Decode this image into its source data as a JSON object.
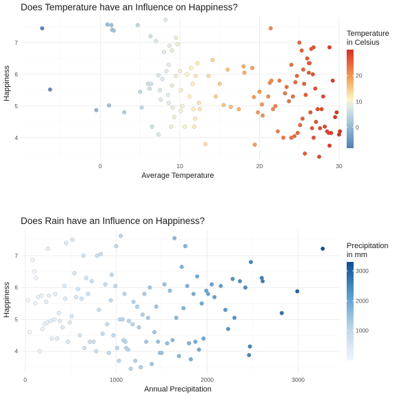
{
  "chart_data": [
    {
      "type": "scatter",
      "title": "Does Temperature have an Influence on Happiness?",
      "xlabel": "Average Temperature",
      "ylabel": "Happiness",
      "xlim": [
        -10,
        30
      ],
      "ylim": [
        3.3,
        7.8
      ],
      "xticks": [
        0,
        10,
        20,
        30
      ],
      "yticks": [
        4,
        5,
        6,
        7
      ],
      "grid": true,
      "legend": {
        "title_lines": [
          "Temperature",
          "in Celsius"
        ],
        "placement": "right",
        "range": [
          -8,
          30
        ],
        "ticks": [
          0,
          10,
          20
        ],
        "colors": [
          "#4f7fb5",
          "#fbf4c0",
          "#d7301f"
        ]
      },
      "points": [
        [
          -7.3,
          7.45
        ],
        [
          -6.3,
          5.52
        ],
        [
          -0.5,
          4.87
        ],
        [
          0.9,
          7.57
        ],
        [
          1.1,
          5.02
        ],
        [
          1.4,
          7.55
        ],
        [
          1.5,
          7.4
        ],
        [
          1.7,
          7.38
        ],
        [
          3.0,
          4.8
        ],
        [
          4.7,
          7.55
        ],
        [
          5.0,
          5.45
        ],
        [
          5.2,
          4.95
        ],
        [
          6.0,
          5.7
        ],
        [
          6.2,
          5.55
        ],
        [
          6.3,
          7.2
        ],
        [
          6.4,
          5.7
        ],
        [
          6.5,
          4.35
        ],
        [
          7.0,
          7.05
        ],
        [
          7.3,
          5.97
        ],
        [
          7.3,
          4.1
        ],
        [
          7.5,
          5.5
        ],
        [
          7.6,
          5.2
        ],
        [
          7.8,
          5.85
        ],
        [
          8.0,
          6.7
        ],
        [
          8.2,
          7.72
        ],
        [
          8.3,
          6.1
        ],
        [
          8.5,
          5.35
        ],
        [
          8.6,
          5.1
        ],
        [
          8.6,
          6.3
        ],
        [
          8.7,
          6.9
        ],
        [
          8.9,
          4.35
        ],
        [
          9.0,
          5.65
        ],
        [
          9.0,
          6.75
        ],
        [
          9.1,
          4.95
        ],
        [
          9.3,
          4.65
        ],
        [
          9.5,
          7.15
        ],
        [
          9.5,
          5.95
        ],
        [
          9.7,
          6.95
        ],
        [
          10.0,
          6.1
        ],
        [
          10.1,
          5.5
        ],
        [
          10.1,
          4.85
        ],
        [
          10.3,
          5.0
        ],
        [
          10.6,
          4.35
        ],
        [
          10.9,
          6.0
        ],
        [
          11.2,
          5.3
        ],
        [
          11.4,
          6.2
        ],
        [
          11.6,
          5.7
        ],
        [
          11.7,
          4.9
        ],
        [
          11.8,
          4.35
        ],
        [
          11.9,
          4.6
        ],
        [
          12.0,
          5.95
        ],
        [
          12.2,
          6.35
        ],
        [
          12.4,
          5.1
        ],
        [
          12.5,
          4.9
        ],
        [
          13.2,
          3.8
        ],
        [
          13.6,
          5.95
        ],
        [
          14.1,
          6.45
        ],
        [
          14.5,
          5.3
        ],
        [
          15.0,
          5.7
        ],
        [
          15.5,
          5.03
        ],
        [
          16.0,
          6.15
        ],
        [
          16.4,
          4.97
        ],
        [
          17.4,
          4.9
        ],
        [
          18.0,
          6.25
        ],
        [
          18.1,
          6.05
        ],
        [
          19.1,
          6.2
        ],
        [
          19.3,
          5.28
        ],
        [
          19.4,
          3.78
        ],
        [
          19.8,
          4.8
        ],
        [
          20.0,
          5.45
        ],
        [
          20.3,
          5.05
        ],
        [
          20.4,
          4.7
        ],
        [
          21.1,
          5.3
        ],
        [
          21.3,
          5.73
        ],
        [
          21.4,
          7.45
        ],
        [
          21.5,
          5.8
        ],
        [
          21.7,
          4.9
        ],
        [
          22.0,
          5.0
        ],
        [
          22.3,
          4.2
        ],
        [
          22.5,
          5.8
        ],
        [
          23.0,
          4.0
        ],
        [
          23.2,
          5.4
        ],
        [
          23.4,
          5.6
        ],
        [
          23.7,
          5.15
        ],
        [
          24.0,
          6.3
        ],
        [
          24.0,
          4.0
        ],
        [
          24.2,
          5.3
        ],
        [
          24.4,
          4.05
        ],
        [
          24.5,
          5.75
        ],
        [
          24.7,
          5.95
        ],
        [
          24.8,
          4.15
        ],
        [
          25.0,
          7.0
        ],
        [
          25.1,
          4.4
        ],
        [
          25.3,
          6.75
        ],
        [
          25.4,
          4.6
        ],
        [
          25.5,
          6.15
        ],
        [
          25.6,
          5.7
        ],
        [
          25.7,
          3.5
        ],
        [
          25.8,
          5.35
        ],
        [
          26.0,
          6.5
        ],
        [
          26.2,
          6.05
        ],
        [
          26.3,
          6.35
        ],
        [
          26.4,
          4.8
        ],
        [
          26.5,
          6.8
        ],
        [
          26.6,
          4.3
        ],
        [
          26.7,
          6.0
        ],
        [
          26.8,
          4.0
        ],
        [
          27.0,
          5.55
        ],
        [
          27.1,
          4.5
        ],
        [
          27.3,
          4.9
        ],
        [
          27.5,
          3.4
        ],
        [
          27.6,
          4.3
        ],
        [
          27.8,
          4.9
        ],
        [
          28.0,
          5.3
        ],
        [
          28.2,
          4.35
        ],
        [
          28.5,
          4.2
        ],
        [
          28.7,
          4.15
        ],
        [
          28.8,
          3.75
        ],
        [
          28.8,
          6.85
        ],
        [
          29.0,
          4.15
        ],
        [
          29.2,
          5.8
        ],
        [
          29.5,
          4.65
        ],
        [
          29.7,
          4.8
        ],
        [
          30.0,
          4.1
        ],
        [
          30.1,
          4.2
        ],
        [
          26.2,
          6.35
        ],
        [
          26.8,
          6.85
        ]
      ]
    },
    {
      "type": "scatter",
      "title": "Does Rain have an Influence on Happiness?",
      "xlabel": "Annual Precipitation",
      "ylabel": "Happiness",
      "xlim": [
        -50,
        3450
      ],
      "ylim": [
        3.3,
        7.8
      ],
      "xticks": [
        0,
        1000,
        2000,
        3000
      ],
      "yticks": [
        4,
        5,
        6,
        7
      ],
      "grid": true,
      "legend": {
        "title_lines": [
          "Precipitation",
          "in mm"
        ],
        "placement": "right",
        "range": [
          0,
          3300
        ],
        "ticks": [
          1000,
          2000,
          3000
        ],
        "colors": [
          "#f1f6fc",
          "#8fc0dc",
          "#0d4f95"
        ]
      },
      "points": [
        [
          30,
          5.6
        ],
        [
          50,
          4.6
        ],
        [
          80,
          6.87
        ],
        [
          100,
          6.5
        ],
        [
          110,
          5.5
        ],
        [
          120,
          6.3
        ],
        [
          140,
          5.7
        ],
        [
          160,
          4.0
        ],
        [
          180,
          5.75
        ],
        [
          190,
          4.7
        ],
        [
          210,
          4.85
        ],
        [
          230,
          5.55
        ],
        [
          240,
          4.9
        ],
        [
          250,
          7.22
        ],
        [
          260,
          5.75
        ],
        [
          280,
          4.95
        ],
        [
          290,
          4.4
        ],
        [
          320,
          5.0
        ],
        [
          330,
          5.8
        ],
        [
          350,
          4.4
        ],
        [
          370,
          5.2
        ],
        [
          380,
          4.95
        ],
        [
          410,
          4.75
        ],
        [
          430,
          6.05
        ],
        [
          440,
          5.65
        ],
        [
          450,
          7.4
        ],
        [
          470,
          4.3
        ],
        [
          490,
          4.9
        ],
        [
          510,
          5.1
        ],
        [
          520,
          7.5
        ],
        [
          540,
          6.45
        ],
        [
          560,
          5.7
        ],
        [
          580,
          5.95
        ],
        [
          600,
          4.5
        ],
        [
          620,
          5.65
        ],
        [
          640,
          7.0
        ],
        [
          650,
          4.1
        ],
        [
          670,
          6.3
        ],
        [
          690,
          5.8
        ],
        [
          710,
          4.3
        ],
        [
          730,
          6.2
        ],
        [
          750,
          4.3
        ],
        [
          780,
          4.0
        ],
        [
          790,
          7.0
        ],
        [
          810,
          5.3
        ],
        [
          830,
          7.05
        ],
        [
          850,
          4.55
        ],
        [
          880,
          6.1
        ],
        [
          900,
          4.85
        ],
        [
          920,
          3.95
        ],
        [
          940,
          5.6
        ],
        [
          950,
          6.4
        ],
        [
          970,
          4.5
        ],
        [
          990,
          6.05
        ],
        [
          1000,
          7.3
        ],
        [
          1010,
          4.1
        ],
        [
          1030,
          3.7
        ],
        [
          1040,
          5.0
        ],
        [
          1050,
          7.62
        ],
        [
          1070,
          5.0
        ],
        [
          1080,
          4.35
        ],
        [
          1090,
          5.8
        ],
        [
          1100,
          4.3
        ],
        [
          1110,
          4.1
        ],
        [
          1130,
          4.05
        ],
        [
          1140,
          4.95
        ],
        [
          1160,
          3.45
        ],
        [
          1180,
          4.85
        ],
        [
          1190,
          5.55
        ],
        [
          1210,
          3.7
        ],
        [
          1230,
          5.4
        ],
        [
          1250,
          4.75
        ],
        [
          1270,
          3.5
        ],
        [
          1290,
          5.15
        ],
        [
          1310,
          5.8
        ],
        [
          1330,
          4.3
        ],
        [
          1350,
          5.05
        ],
        [
          1370,
          6.0
        ],
        [
          1390,
          3.6
        ],
        [
          1420,
          4.6
        ],
        [
          1440,
          5.4
        ],
        [
          1460,
          4.3
        ],
        [
          1480,
          3.95
        ],
        [
          1500,
          3.95
        ],
        [
          1530,
          6.1
        ],
        [
          1560,
          4.25
        ],
        [
          1590,
          5.9
        ],
        [
          1620,
          4.35
        ],
        [
          1640,
          7.55
        ],
        [
          1660,
          5.05
        ],
        [
          1690,
          3.85
        ],
        [
          1720,
          6.65
        ],
        [
          1740,
          5.35
        ],
        [
          1760,
          7.3
        ],
        [
          1780,
          6.05
        ],
        [
          1800,
          4.25
        ],
        [
          1820,
          3.75
        ],
        [
          1850,
          5.8
        ],
        [
          1870,
          4.3
        ],
        [
          1890,
          6.35
        ],
        [
          1910,
          4.05
        ],
        [
          1940,
          5.5
        ],
        [
          1960,
          4.4
        ],
        [
          1990,
          5.9
        ],
        [
          2010,
          5.8
        ],
        [
          2050,
          6.1
        ],
        [
          2080,
          5.7
        ],
        [
          2150,
          6.05
        ],
        [
          2200,
          5.3
        ],
        [
          2230,
          4.7
        ],
        [
          2280,
          6.27
        ],
        [
          2300,
          5.05
        ],
        [
          2360,
          6.2
        ],
        [
          2420,
          6.0
        ],
        [
          2460,
          3.88
        ],
        [
          2470,
          4.15
        ],
        [
          2480,
          6.8
        ],
        [
          2600,
          6.3
        ],
        [
          2610,
          6.2
        ],
        [
          2820,
          5.2
        ],
        [
          2990,
          5.88
        ],
        [
          3270,
          7.22
        ]
      ]
    }
  ]
}
